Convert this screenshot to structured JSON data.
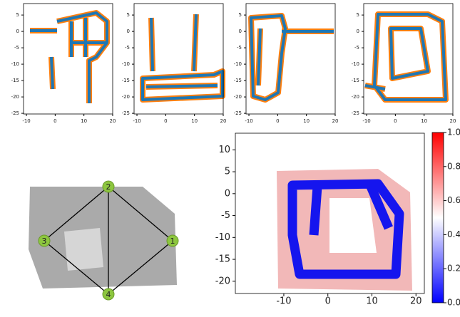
{
  "chart_data": [
    {
      "type": "scatter",
      "xlim": [
        -11,
        20
      ],
      "ylim": [
        -25.2,
        8.5
      ],
      "xticks": [
        -10,
        0,
        10,
        20
      ],
      "yticks": [
        5,
        0,
        -5,
        -10,
        -15,
        -20,
        -25
      ]
    },
    {
      "type": "scatter",
      "xlim": [
        -11,
        20
      ],
      "ylim": [
        -25.2,
        8.5
      ],
      "xticks": [
        -10,
        0,
        10,
        20
      ],
      "yticks": [
        5,
        0,
        -5,
        -10,
        -15,
        -20,
        -25
      ]
    },
    {
      "type": "scatter",
      "xlim": [
        -11,
        20
      ],
      "ylim": [
        -25.2,
        8.5
      ],
      "xticks": [
        -10,
        0,
        10,
        20
      ],
      "yticks": [
        5,
        0,
        -5,
        -10,
        -15,
        -20,
        -25
      ]
    },
    {
      "type": "scatter",
      "xlim": [
        -11,
        20
      ],
      "ylim": [
        -25.2,
        8.5
      ],
      "xticks": [
        -10,
        0,
        10,
        20
      ],
      "yticks": [
        5,
        0,
        -5,
        -10,
        -15,
        -20,
        -25
      ]
    },
    {
      "type": "graph",
      "nodes": [
        {
          "label": "1"
        },
        {
          "label": "2"
        },
        {
          "label": "3"
        },
        {
          "label": "4"
        }
      ]
    },
    {
      "type": "heatmap",
      "xlim": [
        -21,
        21.9
      ],
      "ylim": [
        -22.8,
        13.8
      ],
      "xticks": [
        -10,
        0,
        10,
        20
      ],
      "yticks": [
        10,
        5,
        0,
        -5,
        -10,
        -15,
        -20
      ],
      "colorbar": {
        "lim": [
          0,
          1
        ],
        "ticks": [
          {
            "value": 0,
            "label": "0.0"
          },
          0.2,
          0.4,
          0.6,
          0.8,
          {
            "value": 1,
            "label": "1.0"
          }
        ]
      }
    }
  ]
}
